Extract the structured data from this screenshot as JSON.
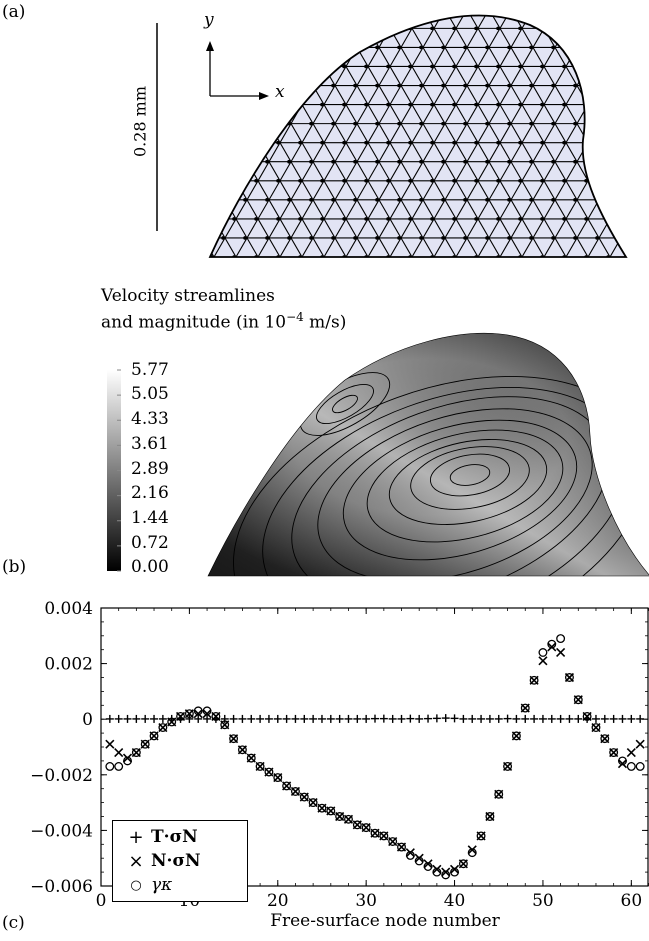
{
  "panel_labels": {
    "a": "(a)",
    "b": "(b)",
    "c": "(c)"
  },
  "panel_a": {
    "scale_label": "0.28 mm",
    "axis_x": "x",
    "axis_y": "y",
    "mesh_color": "#e2e4f4"
  },
  "panel_b": {
    "title_line1": "Velocity streamlines",
    "title_line2": "and magnitude (in 10",
    "title_exp": "−4",
    "title_unit": " m/s)",
    "colorbar_ticks": [
      "5.77",
      "5.05",
      "4.33",
      "3.61",
      "2.89",
      "2.16",
      "1.44",
      "0.72",
      "0.00"
    ]
  },
  "chart_data": {
    "type": "scatter",
    "xlabel": "Free-surface node number",
    "ylabel": "",
    "title": "",
    "xlim": [
      0,
      62
    ],
    "ylim": [
      -0.006,
      0.004
    ],
    "x_ticks": [
      "0",
      "10",
      "20",
      "30",
      "40",
      "50",
      "60"
    ],
    "y_ticks": [
      "0.004",
      "0.002",
      "0",
      "−0.002",
      "−0.004",
      "−0.006"
    ],
    "legend_position": "bottom-left",
    "series": [
      {
        "name": "T·σN",
        "marker": "plus",
        "x": [
          1,
          2,
          3,
          4,
          5,
          6,
          7,
          8,
          9,
          10,
          11,
          12,
          13,
          14,
          15,
          16,
          17,
          18,
          19,
          20,
          21,
          22,
          23,
          24,
          25,
          26,
          27,
          28,
          29,
          30,
          31,
          32,
          33,
          34,
          35,
          36,
          37,
          38,
          39,
          40,
          41,
          42,
          43,
          44,
          45,
          46,
          47,
          48,
          49,
          50,
          51,
          52,
          53,
          54,
          55,
          56,
          57,
          58,
          59,
          60,
          61
        ],
        "y": [
          1e-05,
          1e-05,
          1e-05,
          1e-05,
          1e-05,
          1e-05,
          1e-05,
          1e-05,
          1e-05,
          1e-05,
          1e-05,
          1e-05,
          1e-05,
          1e-05,
          1e-05,
          1e-05,
          1e-05,
          1e-05,
          1e-05,
          1e-05,
          1e-05,
          1e-05,
          1e-05,
          1e-05,
          1e-05,
          1e-05,
          1e-05,
          1e-05,
          1e-05,
          1e-05,
          2e-05,
          2e-05,
          1e-05,
          1e-05,
          2e-05,
          1e-05,
          2e-05,
          3e-05,
          4e-05,
          3e-05,
          1e-05,
          1e-05,
          1e-05,
          1e-05,
          1e-05,
          2e-05,
          1e-05,
          1e-05,
          1e-05,
          1e-05,
          1e-05,
          1e-05,
          1e-05,
          1e-05,
          1e-05,
          1e-05,
          1e-05,
          1e-05,
          1e-05,
          1e-05,
          1e-05
        ]
      },
      {
        "name": "N·σN",
        "marker": "cross",
        "x": [
          1,
          2,
          3,
          4,
          5,
          6,
          7,
          8,
          9,
          10,
          11,
          12,
          13,
          14,
          15,
          16,
          17,
          18,
          19,
          20,
          21,
          22,
          23,
          24,
          25,
          26,
          27,
          28,
          29,
          30,
          31,
          32,
          33,
          34,
          35,
          36,
          37,
          38,
          39,
          40,
          41,
          42,
          43,
          44,
          45,
          46,
          47,
          48,
          49,
          50,
          51,
          52,
          53,
          54,
          55,
          56,
          57,
          58,
          59,
          60,
          61
        ],
        "y": [
          -0.0009,
          -0.0012,
          -0.0014,
          -0.0012,
          -0.0009,
          -0.0006,
          -0.0003,
          -0.0001,
          0.0001,
          0.0002,
          0.0002,
          0.0002,
          0.0001,
          -0.0002,
          -0.0007,
          -0.0011,
          -0.0014,
          -0.0017,
          -0.0019,
          -0.0021,
          -0.0024,
          -0.0026,
          -0.0028,
          -0.003,
          -0.0032,
          -0.0033,
          -0.0035,
          -0.0036,
          -0.0038,
          -0.0039,
          -0.0041,
          -0.0042,
          -0.0044,
          -0.0046,
          -0.0048,
          -0.005,
          -0.0052,
          -0.0054,
          -0.0055,
          -0.0054,
          -0.0052,
          -0.0047,
          -0.0042,
          -0.0035,
          -0.0027,
          -0.0017,
          -0.0006,
          0.0004,
          0.0014,
          0.0021,
          0.0026,
          0.0024,
          0.0015,
          0.0007,
          0.0001,
          -0.0003,
          -0.0007,
          -0.0012,
          -0.0016,
          -0.0012,
          -0.0009
        ]
      },
      {
        "name": "γκ",
        "marker": "circle",
        "x": [
          1,
          2,
          3,
          4,
          5,
          6,
          7,
          8,
          9,
          10,
          11,
          12,
          13,
          14,
          15,
          16,
          17,
          18,
          19,
          20,
          21,
          22,
          23,
          24,
          25,
          26,
          27,
          28,
          29,
          30,
          31,
          32,
          33,
          34,
          35,
          36,
          37,
          38,
          39,
          40,
          41,
          42,
          43,
          44,
          45,
          46,
          47,
          48,
          49,
          50,
          51,
          52,
          53,
          54,
          55,
          56,
          57,
          58,
          59,
          60,
          61
        ],
        "y": [
          -0.0017,
          -0.0017,
          -0.0015,
          -0.0012,
          -0.0009,
          -0.0006,
          -0.0003,
          -0.0001,
          0.0001,
          0.0002,
          0.0003,
          0.0003,
          0.0001,
          -0.0002,
          -0.0007,
          -0.0011,
          -0.0014,
          -0.0017,
          -0.0019,
          -0.0021,
          -0.0024,
          -0.0026,
          -0.0028,
          -0.003,
          -0.0032,
          -0.0033,
          -0.0035,
          -0.0036,
          -0.0038,
          -0.0039,
          -0.0041,
          -0.0042,
          -0.0044,
          -0.0046,
          -0.0049,
          -0.0051,
          -0.0053,
          -0.0055,
          -0.0056,
          -0.0055,
          -0.0052,
          -0.0048,
          -0.0042,
          -0.0035,
          -0.0027,
          -0.0017,
          -0.0006,
          0.0004,
          0.0014,
          0.0024,
          0.0027,
          0.0029,
          0.0015,
          0.0007,
          0.0001,
          -0.0003,
          -0.0007,
          -0.0012,
          -0.0015,
          -0.0017,
          -0.0017
        ]
      }
    ],
    "legend": [
      "T·σN",
      "N·σN",
      "γκ"
    ]
  }
}
